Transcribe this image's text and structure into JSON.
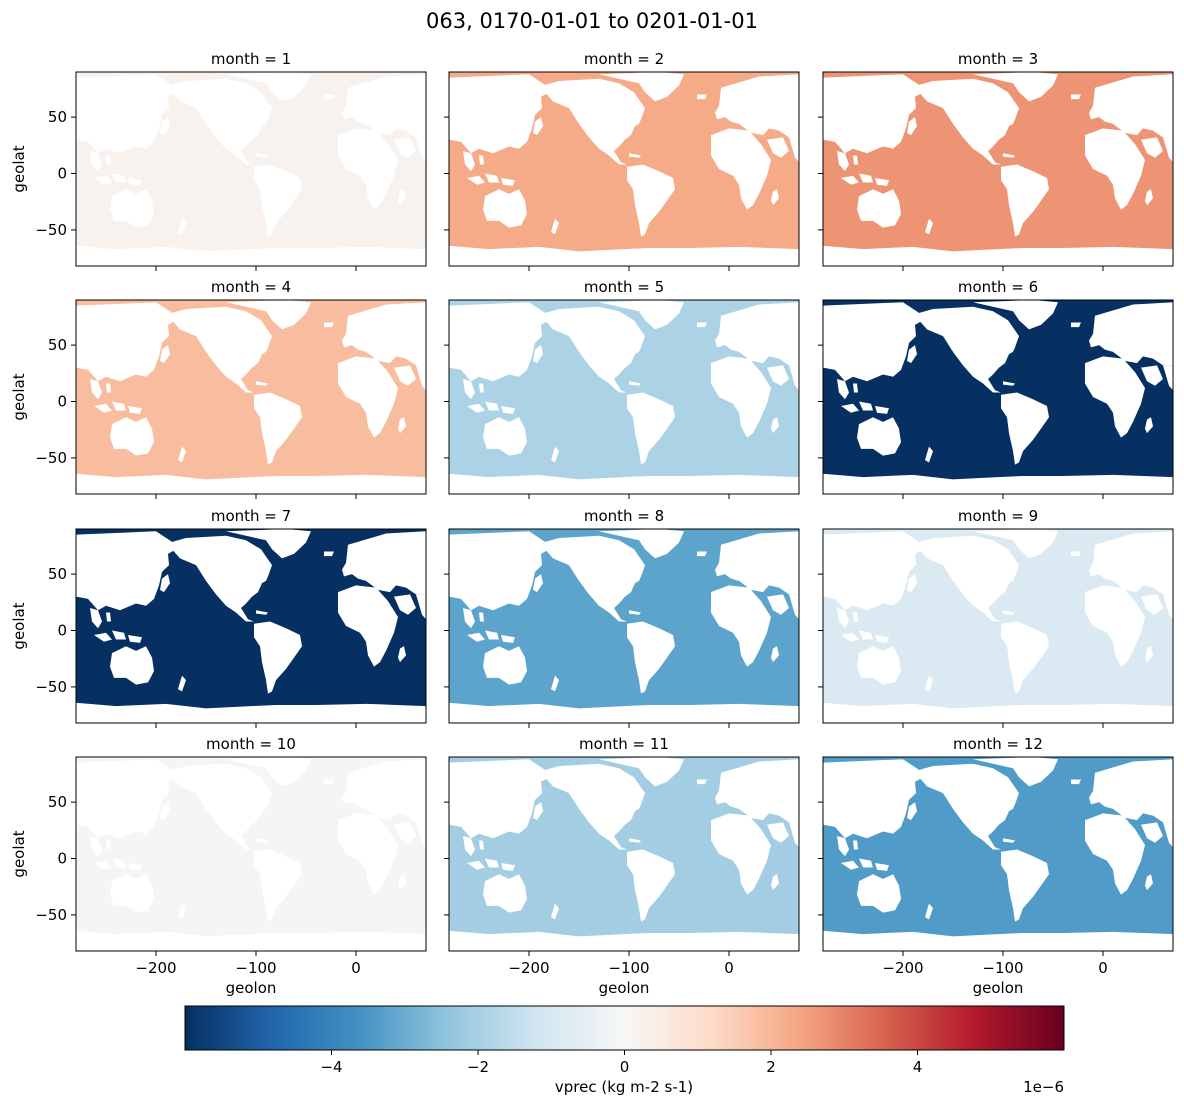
{
  "chart_data": {
    "type": "heatmap",
    "title": "063, 0170-01-01 to 0201-01-01",
    "xlabel": "geolon",
    "ylabel": "geolat",
    "xlim": [
      -280,
      70
    ],
    "ylim": [
      -82,
      90
    ],
    "x_ticks": [
      -200,
      -100,
      0
    ],
    "x_tick_labels": [
      "−200",
      "−100",
      "0"
    ],
    "y_ticks": [
      -50,
      0,
      50
    ],
    "y_tick_labels": [
      "−50",
      "0",
      "50"
    ],
    "colorbar": {
      "label": "vprec (kg m-2 s-1)",
      "vmin": -6e-06,
      "vmax": 6e-06,
      "colormap": "RdBu_r",
      "ticks": [
        -4,
        -2,
        0,
        2,
        4
      ],
      "tick_labels": [
        "−4",
        "−2",
        "0",
        "2",
        "4"
      ],
      "offset_label": "1e−6"
    },
    "panels": [
      {
        "title": "month = 1",
        "value": 2e-07
      },
      {
        "title": "month = 2",
        "value": 2.3e-06
      },
      {
        "title": "month = 3",
        "value": 2.7e-06
      },
      {
        "title": "month = 4",
        "value": 1.9e-06
      },
      {
        "title": "month = 5",
        "value": -1.9e-06
      },
      {
        "title": "month = 6",
        "value": -6e-06
      },
      {
        "title": "month = 7",
        "value": -6e-06
      },
      {
        "title": "month = 8",
        "value": -3.2e-06
      },
      {
        "title": "month = 9",
        "value": -9e-07
      },
      {
        "title": "month = 10",
        "value": -1e-07
      },
      {
        "title": "month = 11",
        "value": -2.1e-06
      },
      {
        "title": "month = 12",
        "value": -3.4e-06
      }
    ]
  }
}
